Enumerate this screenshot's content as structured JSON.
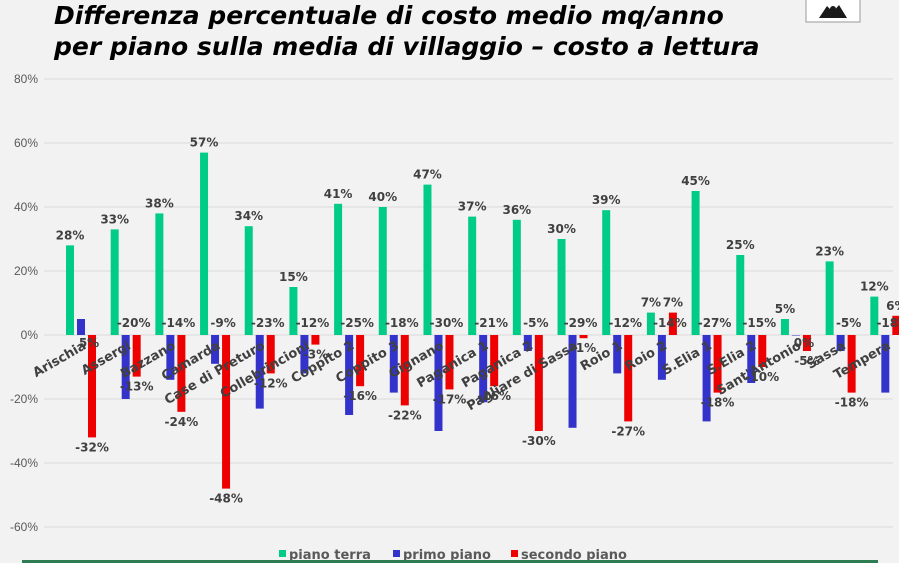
{
  "chart_data": {
    "type": "bar",
    "title": "Differenza percentuale di costo medio mq/anno per piano sulla media di villaggio – costo a lettura",
    "title_lines": [
      "Differenza percentuale di costo medio mq/anno",
      "per piano sulla media di villaggio – costo a lettura"
    ],
    "categories": [
      "Arischia",
      "Assergi",
      "Bazzano",
      "Camarda",
      "Case di Preturo",
      "Collebrincioni",
      "Coppito 2",
      "Coppito 3",
      "Gignano",
      "Paganica 1",
      "Paganica 2",
      "Pagliare di Sassa",
      "Roio 1",
      "Roio 2",
      "S.Elia 1",
      "S.Elia 2",
      "Sant'Antonio",
      "Sassa",
      "Tempera"
    ],
    "series": [
      {
        "name": "piano terra",
        "color": "#00cc88",
        "values": [
          28,
          33,
          38,
          57,
          34,
          15,
          41,
          40,
          47,
          37,
          36,
          30,
          39,
          7,
          45,
          25,
          5,
          23,
          12
        ],
        "labels": [
          "28%",
          "33%",
          "38%",
          "57%",
          "34%",
          "15%",
          "41%",
          "40%",
          "47%",
          "37%",
          "36%",
          "30%",
          "39%",
          "7%",
          "45%",
          "25%",
          "5%",
          "23%",
          "12%"
        ]
      },
      {
        "name": "primo piano",
        "color": "#3333cc",
        "values": [
          5,
          -20,
          -14,
          -9,
          -23,
          -12,
          -25,
          -18,
          -30,
          -21,
          -5,
          -29,
          -12,
          -14,
          -27,
          -15,
          0,
          -5,
          -18
        ],
        "labels": [
          "5%",
          "-20%",
          "-14%",
          "-9%",
          "-23%",
          "-12%",
          "-25%",
          "-18%",
          "-30%",
          "-21%",
          "-5%",
          "-29%",
          "-12%",
          "-14%",
          "-27%",
          "-15%",
          "0%",
          "-5%",
          "-18%"
        ]
      },
      {
        "name": "secondo piano",
        "color": "#ee0000",
        "values": [
          -32,
          -13,
          -24,
          -48,
          -12,
          -3,
          -16,
          -22,
          -17,
          -16,
          -30,
          -1,
          -27,
          7,
          -18,
          -10,
          -5,
          -18,
          6
        ],
        "labels": [
          "-32%",
          "-13%",
          "-24%",
          "-48%",
          "-12%",
          "-3%",
          "-16%",
          "-22%",
          "-17%",
          "-16%",
          "-30%",
          "-1%",
          "-27%",
          "7%",
          "-18%",
          "-10%",
          "-5%",
          "-18%",
          "6%"
        ]
      }
    ],
    "ylim": [
      -60,
      80
    ],
    "yticks": [
      "-60%",
      "-40%",
      "-20%",
      "0%",
      "20%",
      "40%",
      "60%",
      "80%"
    ],
    "grid": true,
    "legend_position": "bottom",
    "xlabel": "",
    "ylabel": ""
  }
}
